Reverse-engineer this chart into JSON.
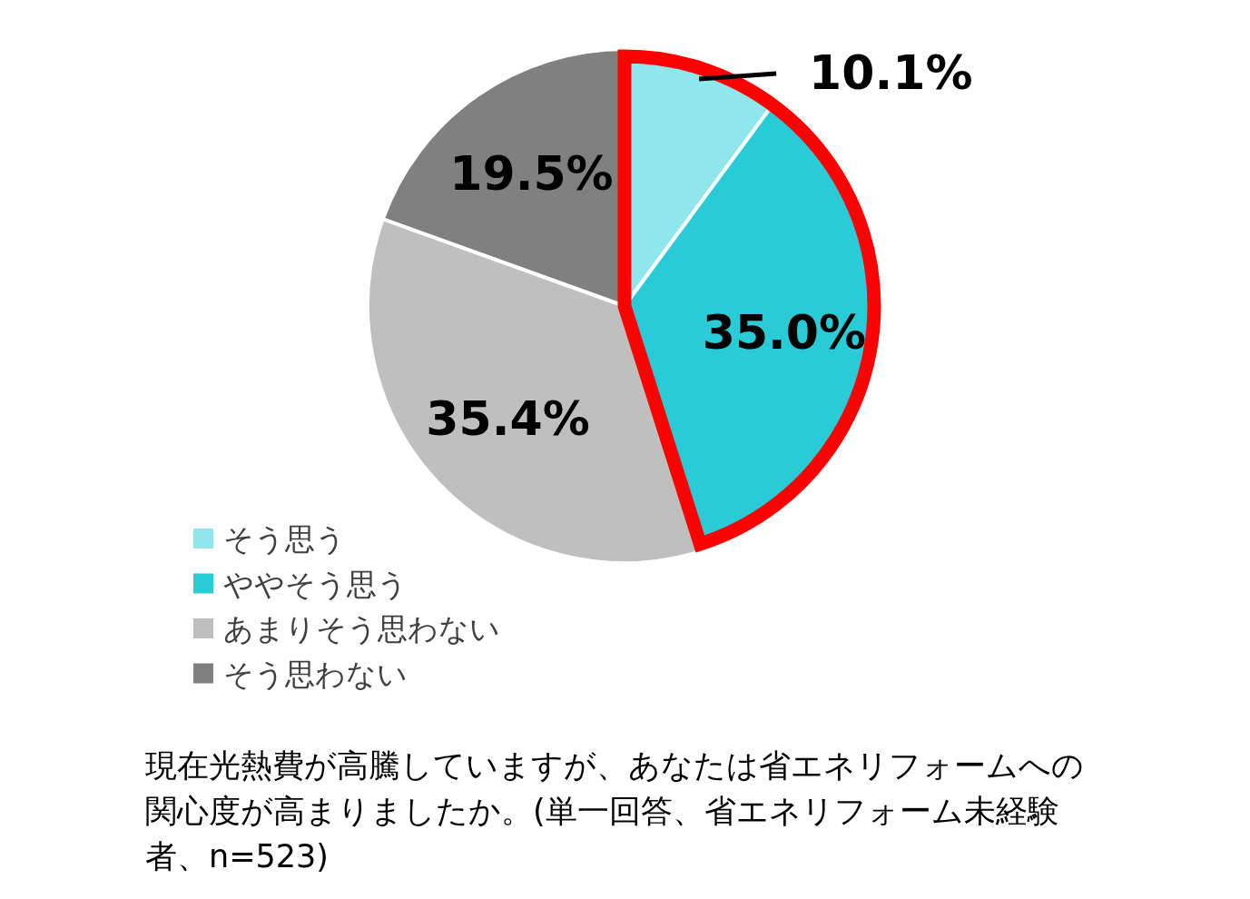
{
  "chart_data": {
    "type": "pie",
    "title": "現在光熱費が高騰していますが、あなたは省エネリフォームへの関心度が高まりましたか。(単一回答、省エネリフォーム未経験者、n=523)",
    "categories": [
      "そう思う",
      "ややそう思う",
      "あまりそう思わない",
      "そう思わない"
    ],
    "values": [
      10.1,
      35.0,
      35.4,
      19.5
    ],
    "colors": [
      "#8fe6eb",
      "#29ccd6",
      "#bfbfbf",
      "#808080"
    ],
    "value_labels": [
      "10.1%",
      "35.0%",
      "35.4%",
      "19.5%"
    ],
    "legend": "bottom left"
  }
}
